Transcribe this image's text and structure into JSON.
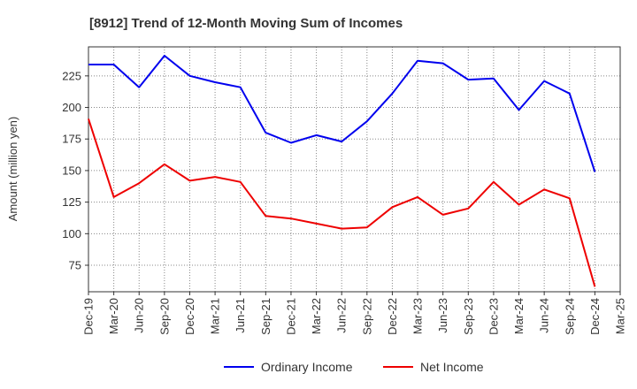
{
  "chart_data": {
    "type": "line",
    "title": "[8912]  Trend of 12-Month Moving Sum of Incomes",
    "xlabel": "",
    "ylabel": "Amount (million yen)",
    "categories": [
      "Dec-19",
      "Mar-20",
      "Jun-20",
      "Sep-20",
      "Dec-20",
      "Mar-21",
      "Jun-21",
      "Sep-21",
      "Dec-21",
      "Mar-22",
      "Jun-22",
      "Sep-22",
      "Dec-22",
      "Mar-23",
      "Jun-23",
      "Sep-23",
      "Dec-23",
      "Mar-24",
      "Jun-24",
      "Sep-24",
      "Dec-24",
      "Mar-25"
    ],
    "yticks": [
      75,
      100,
      125,
      150,
      175,
      200,
      225
    ],
    "ylim": [
      54,
      248
    ],
    "grid": true,
    "legend_position": "bottom",
    "series": [
      {
        "name": "Ordinary Income",
        "color": "#0000ee",
        "values": [
          234,
          234,
          216,
          241,
          225,
          220,
          216,
          180,
          172,
          178,
          173,
          189,
          211,
          237,
          235,
          222,
          223,
          198,
          221,
          211,
          149,
          null
        ]
      },
      {
        "name": "Net Income",
        "color": "#ee0000",
        "values": [
          191,
          129,
          140,
          155,
          142,
          145,
          141,
          114,
          112,
          108,
          104,
          105,
          121,
          129,
          115,
          120,
          141,
          123,
          135,
          128,
          58,
          null
        ]
      }
    ]
  }
}
